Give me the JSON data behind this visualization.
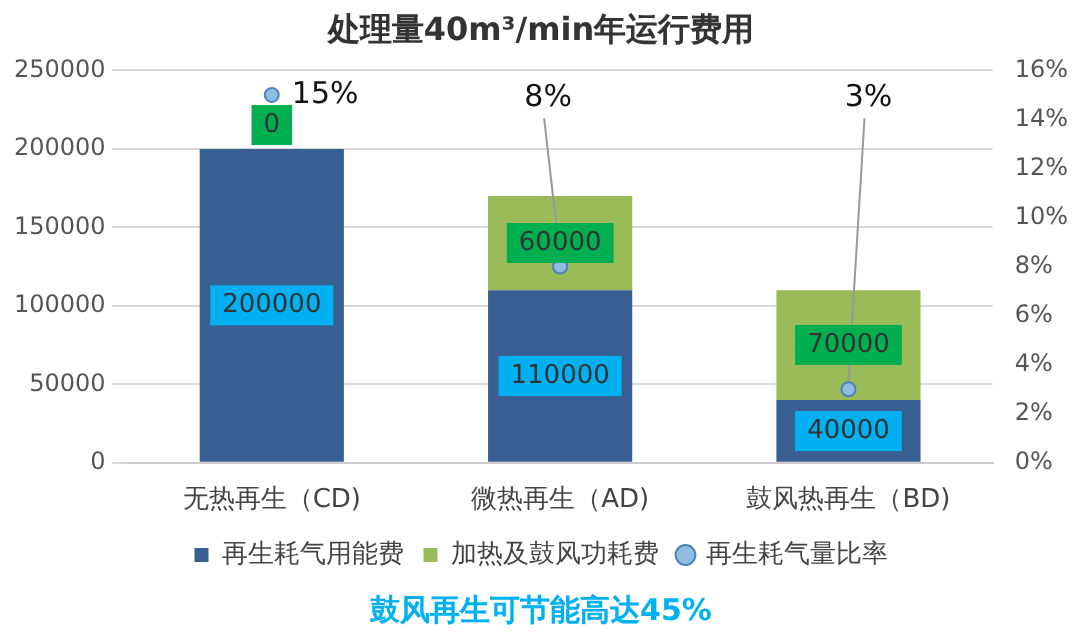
{
  "chart_data": {
    "type": "bar",
    "stacked": true,
    "title": "处理量40m³/min年运行费用",
    "categories": [
      "无热再生（CD)",
      "微热再生（AD)",
      "鼓风热再生（BD)"
    ],
    "series": [
      {
        "name": "再生耗气用能费",
        "color": "#375f91",
        "values": [
          200000,
          110000,
          40000
        ],
        "value_labels": [
          "200000",
          "110000",
          "40000"
        ]
      },
      {
        "name": "加热及鼓风功耗费",
        "color": "#9bbb59",
        "values": [
          0,
          60000,
          70000
        ],
        "value_labels": [
          "0",
          "60000",
          "70000"
        ]
      },
      {
        "name": "再生耗气量比率",
        "type": "scatter",
        "axis": "y2",
        "color": "#8fbfe0",
        "x": [
          "无热再生（CD)",
          "微热再生（AD)",
          "鼓风热再生（BD)"
        ],
        "values": [
          15,
          8,
          3
        ],
        "value_labels": [
          "15%",
          "8%",
          "3%"
        ]
      }
    ],
    "ylim": [
      0,
      250000
    ],
    "yticks": [
      0,
      50000,
      100000,
      150000,
      200000,
      250000
    ],
    "y2lim": [
      0,
      16
    ],
    "y2ticks": [
      {
        "value": 0,
        "label": "0%"
      },
      {
        "value": 2,
        "label": "2%"
      },
      {
        "value": 4,
        "label": "4%"
      },
      {
        "value": 6,
        "label": "6%"
      },
      {
        "value": 8,
        "label": "8%"
      },
      {
        "value": 10,
        "label": "10%"
      },
      {
        "value": 12,
        "label": "12%"
      },
      {
        "value": 14,
        "label": "14%"
      },
      {
        "value": 16,
        "label": "16%"
      }
    ],
    "grid": "y",
    "legend": "bottom",
    "marker": "circle",
    "annotations": [
      "鼓风再生可节能高达45%"
    ]
  }
}
